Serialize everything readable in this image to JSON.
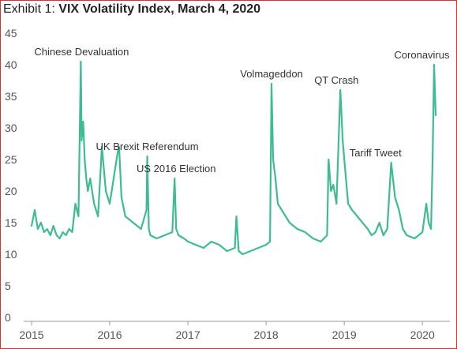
{
  "chart_data": {
    "type": "line",
    "title_prefix": "Exhibit 1:",
    "title": "VIX Volatility Index, March 4, 2020",
    "xlabel": "",
    "ylabel": "",
    "ylim": [
      0,
      45
    ],
    "xlim": [
      2015.0,
      2020.2
    ],
    "y_ticks": [
      0,
      5,
      10,
      15,
      20,
      25,
      30,
      35,
      40,
      45
    ],
    "x_ticks": [
      2015,
      2016,
      2017,
      2018,
      2019,
      2020
    ],
    "grid": false,
    "series": [
      {
        "color": "#3dbd8f",
        "x": [
          2015.0,
          2015.04,
          2015.08,
          2015.12,
          2015.16,
          2015.2,
          2015.24,
          2015.28,
          2015.32,
          2015.36,
          2015.4,
          2015.44,
          2015.48,
          2015.52,
          2015.56,
          2015.6,
          2015.63,
          2015.64,
          2015.66,
          2015.68,
          2015.7,
          2015.72,
          2015.75,
          2015.8,
          2015.85,
          2015.9,
          2015.95,
          2016.0,
          2016.05,
          2016.1,
          2016.12,
          2016.15,
          2016.2,
          2016.3,
          2016.4,
          2016.47,
          2016.48,
          2016.5,
          2016.52,
          2016.6,
          2016.7,
          2016.8,
          2016.83,
          2016.85,
          2016.88,
          2016.95,
          2017.0,
          2017.1,
          2017.2,
          2017.3,
          2017.4,
          2017.5,
          2017.6,
          2017.62,
          2017.65,
          2017.7,
          2017.8,
          2017.9,
          2018.0,
          2018.05,
          2018.07,
          2018.09,
          2018.12,
          2018.15,
          2018.2,
          2018.25,
          2018.3,
          2018.4,
          2018.5,
          2018.6,
          2018.7,
          2018.78,
          2018.8,
          2018.83,
          2018.86,
          2018.9,
          2018.95,
          2018.98,
          2019.0,
          2019.05,
          2019.1,
          2019.2,
          2019.3,
          2019.35,
          2019.4,
          2019.45,
          2019.5,
          2019.55,
          2019.6,
          2019.65,
          2019.7,
          2019.75,
          2019.8,
          2019.9,
          2020.0,
          2020.05,
          2020.08,
          2020.11,
          2020.13,
          2020.15,
          2020.17
        ],
        "y": [
          14.5,
          17,
          14,
          15,
          13.5,
          14,
          13,
          14.5,
          13,
          12.5,
          13.5,
          13,
          14,
          13.5,
          18,
          16,
          40.5,
          28,
          31,
          25,
          22,
          20,
          22,
          18,
          16,
          27,
          20,
          18,
          22,
          26,
          27,
          19,
          16,
          15,
          14,
          17,
          25.5,
          14,
          13,
          12.5,
          13,
          13.5,
          22,
          14,
          13,
          12.5,
          12,
          11.5,
          11,
          12,
          11.5,
          10.5,
          11,
          16,
          10.5,
          10,
          10.5,
          11,
          11.5,
          12,
          37,
          25,
          22,
          18,
          17,
          16,
          15,
          14,
          13.5,
          12.5,
          12,
          13,
          25,
          20,
          21,
          18,
          36,
          28,
          25,
          18,
          17,
          15.5,
          14,
          13,
          13.5,
          15,
          13,
          14,
          24.5,
          19,
          17,
          14,
          13,
          12.5,
          13.5,
          18,
          15,
          14,
          25,
          40,
          32
        ]
      }
    ],
    "annotations": [
      {
        "text": "Chinese Devaluation",
        "x": 2015.64,
        "y": 40.5
      },
      {
        "text": "UK Brexit Referendum",
        "x": 2016.48,
        "y": 25.5
      },
      {
        "text": "US 2016 Election",
        "x": 2016.85,
        "y": 22
      },
      {
        "text": "Volmageddon",
        "x": 2018.07,
        "y": 37
      },
      {
        "text": "QT Crash",
        "x": 2018.9,
        "y": 36
      },
      {
        "text": "Tariff Tweet",
        "x": 2019.4,
        "y": 24.5
      },
      {
        "text": "Coronavirus",
        "x": 2020.15,
        "y": 40
      }
    ]
  }
}
